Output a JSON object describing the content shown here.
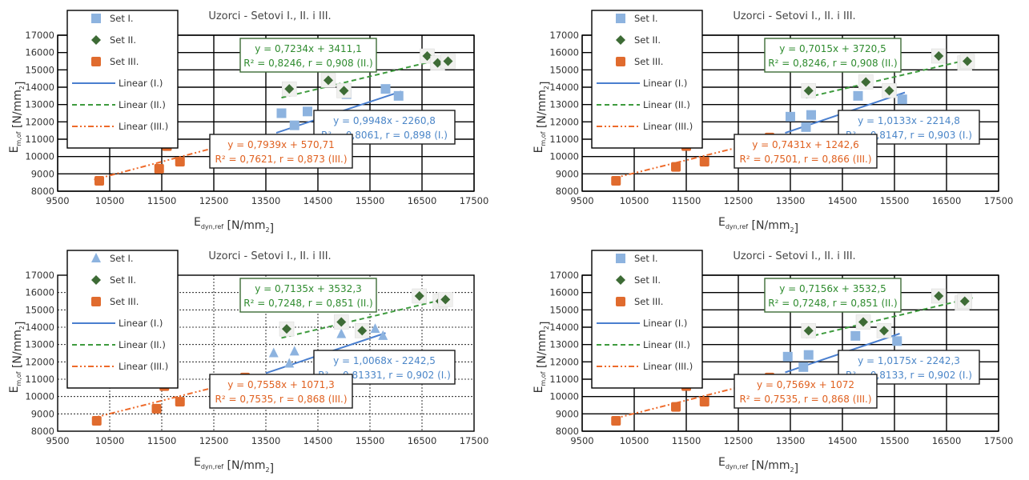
{
  "colors": {
    "set1": "#8db3df",
    "set2": "#3d6b35",
    "set3": "#e06b2e",
    "linear1": "#4a7fcf",
    "linear2": "#3e9b3e",
    "linear3": "#ee6a2a",
    "box1_text": "#4b86c8",
    "box2_text": "#2e8b2e",
    "box3_text": "#e0601f",
    "grid": "#000000"
  },
  "chart_data": [
    {
      "type": "scatter",
      "title": "Uzorci - Setovi I., II. i III.",
      "xlabel": "E_dyn,ref [N/mm_2]",
      "ylabel": "E_m,of [N/mm_2]",
      "xlim": [
        9500,
        17500
      ],
      "ylim": [
        8000,
        17000
      ],
      "xticks": [
        "9500",
        "10500",
        "11500",
        "12500",
        "13500",
        "14500",
        "15500",
        "16500",
        "17500"
      ],
      "yticks": [
        "8000",
        "9000",
        "10000",
        "11000",
        "12000",
        "13000",
        "14000",
        "15000",
        "16000",
        "17000"
      ],
      "grid": "solid",
      "legend_position": "top-left",
      "set1_marker": "square",
      "legend": [
        "Set I.",
        "Set II.",
        "Set III.",
        "Linear (I.)",
        "Linear (II.)",
        "Linear (III.)"
      ],
      "series": [
        {
          "name": "Set I.",
          "x": [
            13800,
            14050,
            14300,
            15050,
            15800,
            16050
          ],
          "y": [
            12500,
            11800,
            12600,
            13600,
            13900,
            13500
          ]
        },
        {
          "name": "Set II.",
          "x": [
            13950,
            14700,
            15000,
            16600,
            16800,
            17000
          ],
          "y": [
            13900,
            14400,
            13800,
            15800,
            15400,
            15500
          ]
        },
        {
          "name": "Set III.",
          "x": [
            10300,
            11450,
            11600,
            11850,
            13100,
            13100
          ],
          "y": [
            8600,
            9300,
            10600,
            9700,
            11000,
            10600
          ]
        },
        {
          "name": "Linear (I.)",
          "fit": {
            "slope": 0.9948,
            "intercept": -2260.8
          },
          "range": [
            13700,
            16100
          ]
        },
        {
          "name": "Linear (II.)",
          "fit": {
            "slope": 0.7234,
            "intercept": 3411.1
          },
          "range": [
            13800,
            17100
          ]
        },
        {
          "name": "Linear (III.)",
          "fit": {
            "slope": 0.7939,
            "intercept": 570.71
          },
          "range": [
            10200,
            13300
          ]
        }
      ],
      "annotations": {
        "set2": {
          "eq": "y = 0,7234x + 3411,1",
          "r": "R² = 0,8246,   r = 0,908 (II.)"
        },
        "set1": {
          "eq": "y = 0,9948x - 2260,8",
          "r": "R² = 0,8061,   r = 0,898 (I.)"
        },
        "set3": {
          "eq": "y = 0,7939x + 570,71",
          "r": "R² = 0,7621,   r = 0,873 (III.)"
        }
      }
    },
    {
      "type": "scatter",
      "title": "Uzorci - Setovi I., II. i III.",
      "xlabel": "E_dyn,ref [N/mm_2]",
      "ylabel": "E_m,of [N/mm_2]",
      "xlim": [
        9500,
        17500
      ],
      "ylim": [
        8000,
        17000
      ],
      "xticks": [
        "9500",
        "10500",
        "11500",
        "12500",
        "13500",
        "14500",
        "15500",
        "16500",
        "17500"
      ],
      "yticks": [
        "8000",
        "9000",
        "10000",
        "11000",
        "12000",
        "13000",
        "14000",
        "15000",
        "16000",
        "17000"
      ],
      "grid": "solid",
      "legend_position": "top-left",
      "set1_marker": "square",
      "legend": [
        "Set I.",
        "Set II.",
        "Set III.",
        "Linear (I.)",
        "Linear (II.)",
        "Linear (III.)"
      ],
      "series": [
        {
          "name": "Set I.",
          "x": [
            13500,
            13800,
            13900,
            14800,
            15400,
            15650
          ],
          "y": [
            12300,
            11700,
            12400,
            13500,
            13700,
            13300
          ]
        },
        {
          "name": "Set II.",
          "x": [
            13850,
            14950,
            15400,
            16350,
            16850,
            16900
          ],
          "y": [
            13800,
            14300,
            13800,
            15800,
            15400,
            15500
          ]
        },
        {
          "name": "Set III.",
          "x": [
            10150,
            11300,
            11500,
            11850,
            13000,
            13100
          ],
          "y": [
            8600,
            9400,
            10600,
            9700,
            10900,
            11100
          ]
        },
        {
          "name": "Linear (I.)",
          "fit": {
            "slope": 1.0133,
            "intercept": -2214.8
          },
          "range": [
            13400,
            15700
          ]
        },
        {
          "name": "Linear (II.)",
          "fit": {
            "slope": 0.7015,
            "intercept": 3720.5
          },
          "range": [
            13800,
            17000
          ]
        },
        {
          "name": "Linear (III.)",
          "fit": {
            "slope": 0.7431,
            "intercept": 1242.6
          },
          "range": [
            10100,
            13200
          ]
        }
      ],
      "annotations": {
        "set2": {
          "eq": "y = 0,7015x + 3720,5",
          "r": "R² = 0,8246,   r = 0,908 (II.)"
        },
        "set1": {
          "eq": "y = 1,0133x - 2214,8",
          "r": "R² = 0,8147,   r = 0,903 (I.)"
        },
        "set3": {
          "eq": "y = 0,7431x + 1242,6",
          "r": "R² = 0,7501,   r = 0,866 (III.)"
        }
      }
    },
    {
      "type": "scatter",
      "title": "Uzorci - Setovi I., II. i III.",
      "xlabel": "E_dyn,ref [N/mm_2]",
      "ylabel": "E_m,of [N/mm_2]",
      "xlim": [
        9500,
        17500
      ],
      "ylim": [
        8000,
        17000
      ],
      "xticks": [
        "9500",
        "10500",
        "11500",
        "12500",
        "13500",
        "14500",
        "15500",
        "16500",
        "17500"
      ],
      "yticks": [
        "8000",
        "9000",
        "10000",
        "11000",
        "12000",
        "13000",
        "14000",
        "15000",
        "16000",
        "17000"
      ],
      "grid": "dotted",
      "legend_position": "top-left",
      "set1_marker": "triangle",
      "legend": [
        "Set I.",
        "Set II.",
        "Set III.",
        "Linear (I.)",
        "Linear (II.)",
        "Linear (III.)"
      ],
      "series": [
        {
          "name": "Set I.",
          "x": [
            13650,
            13950,
            14050,
            14950,
            15600,
            15750
          ],
          "y": [
            12500,
            11900,
            12600,
            13600,
            13900,
            13500
          ]
        },
        {
          "name": "Set II.",
          "x": [
            13900,
            14950,
            15350,
            16450,
            16850,
            16950
          ],
          "y": [
            13900,
            14300,
            13800,
            15800,
            15500,
            15600
          ]
        },
        {
          "name": "Set III.",
          "x": [
            10250,
            11400,
            11550,
            11850,
            13050,
            13100
          ],
          "y": [
            8600,
            9300,
            10600,
            9700,
            10900,
            11100
          ]
        },
        {
          "name": "Linear (I.)",
          "fit": {
            "slope": 1.0068,
            "intercept": -2242.5
          },
          "range": [
            13500,
            15800
          ]
        },
        {
          "name": "Linear (II.)",
          "fit": {
            "slope": 0.7135,
            "intercept": 3532.3
          },
          "range": [
            13800,
            17000
          ]
        },
        {
          "name": "Linear (III.)",
          "fit": {
            "slope": 0.7558,
            "intercept": 1071.3
          },
          "range": [
            10200,
            13200
          ]
        }
      ],
      "annotations": {
        "set2": {
          "eq": "y = 0,7135x + 3532,3",
          "r": "R² = 0,7248,   r = 0,851 (II.)"
        },
        "set1": {
          "eq": "y = 1,0068x - 2242,5",
          "r": "R² = 0,81331,   r = 0,902 (I.)"
        },
        "set3": {
          "eq": "y = 0,7558x + 1071,3",
          "r": "R² = 0,7535,   r = 0,868 (III.)"
        }
      }
    },
    {
      "type": "scatter",
      "title": "Uzorci - Setovi I., II. i III.",
      "xlabel": "E_dyn,ref [N/mm_2]",
      "ylabel": "E_m,of [N/mm_2]",
      "xlim": [
        9500,
        17500
      ],
      "ylim": [
        8000,
        17000
      ],
      "xticks": [
        "9500",
        "10500",
        "11500",
        "12500",
        "13500",
        "14500",
        "15500",
        "16500",
        "17500"
      ],
      "yticks": [
        "8000",
        "9000",
        "10000",
        "11000",
        "12000",
        "13000",
        "14000",
        "15000",
        "16000",
        "17000"
      ],
      "grid": "solid",
      "legend_position": "top-left",
      "set1_marker": "square",
      "legend": [
        "Set I.",
        "Set II.",
        "Set III.",
        "Linear (I.)",
        "Linear (II.)",
        "Linear (III.)"
      ],
      "series": [
        {
          "name": "Set I.",
          "x": [
            13450,
            13750,
            13850,
            14750,
            15350,
            15550
          ],
          "y": [
            12300,
            11700,
            12400,
            13500,
            13700,
            13200
          ]
        },
        {
          "name": "Set II.",
          "x": [
            13850,
            14900,
            15300,
            16350,
            16800,
            16850
          ],
          "y": [
            13800,
            14300,
            13800,
            15800,
            15400,
            15500
          ]
        },
        {
          "name": "Set III.",
          "x": [
            10150,
            11300,
            11500,
            11850,
            13000,
            13100
          ],
          "y": [
            8600,
            9400,
            10600,
            9700,
            10900,
            11100
          ]
        },
        {
          "name": "Linear (I.)",
          "fit": {
            "slope": 1.0175,
            "intercept": -2242.3
          },
          "range": [
            13400,
            15600
          ]
        },
        {
          "name": "Linear (II.)",
          "fit": {
            "slope": 0.7156,
            "intercept": 3532.5
          },
          "range": [
            13800,
            17000
          ]
        },
        {
          "name": "Linear (III.)",
          "fit": {
            "slope": 0.7569,
            "intercept": 1072
          },
          "range": [
            10100,
            13200
          ]
        }
      ],
      "annotations": {
        "set2": {
          "eq": "y = 0,7156x + 3532,5",
          "r": "R² = 0,7248,   r = 0,851 (II.)"
        },
        "set1": {
          "eq": "y = 1,0175x - 2242,3",
          "r": "R² = 0,8133,   r = 0,902 (I.)"
        },
        "set3": {
          "eq": "y = 0,7569x + 1072",
          "r": "R² = 0,7535,   r = 0,868 (III.)"
        }
      }
    }
  ]
}
